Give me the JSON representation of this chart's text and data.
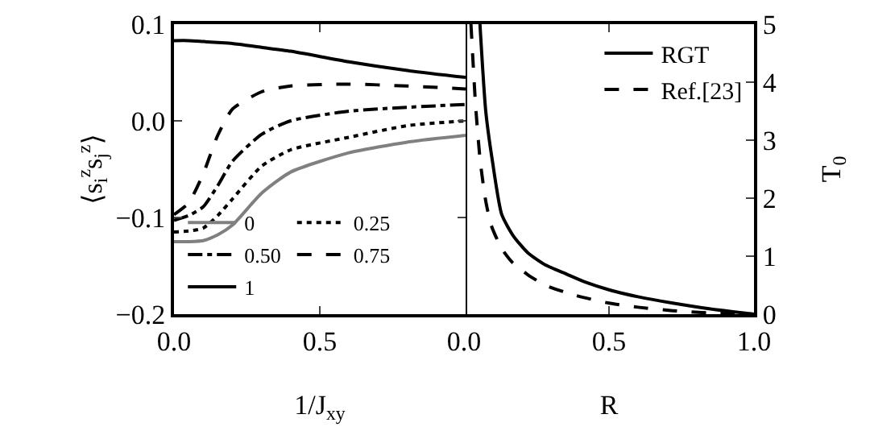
{
  "chart_data": [
    {
      "type": "line",
      "xlabel": "1/J$_{xy}$",
      "ylabel": "⟨s$_{i}$$^{z}$s$_{j}$$^{z}$⟩",
      "xlim": [
        0,
        1
      ],
      "ylim": [
        -0.2,
        0.1
      ],
      "xticks": [
        {
          "value": 0,
          "label": "0.0"
        },
        {
          "value": 0.5,
          "label": "0.5"
        },
        {
          "value": 1,
          "label": null
        }
      ],
      "yticks": [
        {
          "value": -0.2,
          "label": "−0.2"
        },
        {
          "value": -0.1,
          "label": "−0.1"
        },
        {
          "value": 0,
          "label": "0.0"
        },
        {
          "value": 0.1,
          "label": "0.1"
        }
      ],
      "grid": false,
      "legend": "bottom left",
      "marker": "none",
      "x": [
        0,
        0.05,
        0.1,
        0.15,
        0.2,
        0.3,
        0.4,
        0.6,
        0.8,
        1.0
      ],
      "series": [
        {
          "name": "0",
          "color": "#808080",
          "line_style": "solid",
          "values": [
            -0.125,
            -0.125,
            -0.124,
            -0.118,
            -0.108,
            -0.075,
            -0.053,
            -0.033,
            -0.022,
            -0.015
          ]
        },
        {
          "name": "0.25",
          "color": "#000000",
          "line_style": "dotted",
          "values": [
            -0.115,
            -0.114,
            -0.111,
            -0.098,
            -0.081,
            -0.047,
            -0.03,
            -0.017,
            -0.005,
            0.0
          ]
        },
        {
          "name": "0.50",
          "color": "#000000",
          "line_style": "dashdot",
          "values": [
            -0.103,
            -0.098,
            -0.089,
            -0.067,
            -0.042,
            -0.014,
            0.0,
            0.01,
            0.014,
            0.017
          ]
        },
        {
          "name": "0.75",
          "color": "#000000",
          "line_style": "dashed",
          "values": [
            -0.097,
            -0.085,
            -0.055,
            -0.015,
            0.012,
            0.03,
            0.036,
            0.038,
            0.036,
            0.033
          ]
        },
        {
          "name": "1",
          "color": "#000000",
          "line_style": "solid",
          "values": [
            0.083,
            0.083,
            0.082,
            0.081,
            0.08,
            0.076,
            0.072,
            0.061,
            0.052,
            0.045
          ]
        }
      ]
    },
    {
      "type": "line",
      "xlabel": "R",
      "y2label": "T$_{0}$",
      "xlim": [
        0,
        1
      ],
      "y2lim": [
        0,
        5
      ],
      "xticks": [
        {
          "value": 0,
          "label": "0.0"
        },
        {
          "value": 0.5,
          "label": "0.5"
        },
        {
          "value": 1,
          "label": "1.0"
        }
      ],
      "y2ticks": [
        0,
        1,
        2,
        3,
        4,
        5
      ],
      "grid": false,
      "legend": "top right",
      "marker": "none",
      "series": [
        {
          "name": "RGT",
          "color": "#000000",
          "line_style": "solid",
          "axis": "y2",
          "x": [
            0.055,
            0.075,
            0.098,
            0.13,
            0.17,
            0.22,
            0.28,
            0.354,
            0.42,
            0.5,
            0.6,
            0.72,
            0.85,
            1.0
          ],
          "values": [
            5,
            3.5,
            2.64,
            1.72,
            1.35,
            1.06,
            0.85,
            0.69,
            0.55,
            0.42,
            0.3,
            0.19,
            0.09,
            0
          ]
        },
        {
          "name": "Ref.[23]",
          "color": "#000000",
          "line_style": "dashed",
          "axis": "y2",
          "x": [
            0.024,
            0.04,
            0.056,
            0.075,
            0.094,
            0.13,
            0.167,
            0.22,
            0.28,
            0.38,
            0.5,
            0.6,
            0.72,
            0.85,
            1.0
          ],
          "values": [
            5,
            3.6,
            2.64,
            1.95,
            1.53,
            1.13,
            0.89,
            0.68,
            0.5,
            0.33,
            0.19,
            0.12,
            0.06,
            0.02,
            0
          ]
        }
      ]
    }
  ]
}
